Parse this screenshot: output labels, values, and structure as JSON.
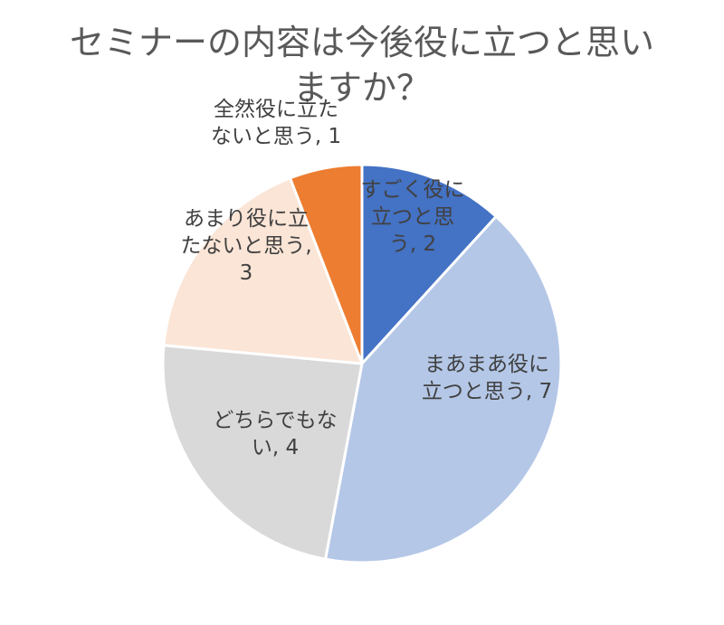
{
  "chart_data": {
    "type": "pie",
    "title_lines": [
      "セミナーの内容は今後役に立つと思い",
      "ますか？"
    ],
    "start_angle_deg": 0,
    "direction": "clockwise",
    "slices": [
      {
        "category": "すごく役に立つと思う",
        "value": 2,
        "color": "#4472C4",
        "label_lines": [
          "すごく役に",
          "立つと思",
          "う, 2"
        ]
      },
      {
        "category": "まあまあ役に立つと思う",
        "value": 7,
        "color": "#B4C7E7",
        "label_lines": [
          "まあまあ役に",
          "立つと思う, 7"
        ]
      },
      {
        "category": "どちらでもない",
        "value": 4,
        "color": "#D9D9D9",
        "label_lines": [
          "どちらでもな",
          "い, 4"
        ]
      },
      {
        "category": "あまり役に立たないと思う",
        "value": 3,
        "color": "#FBE5D6",
        "label_lines": [
          "あまり役に立",
          "たないと思う,",
          "3"
        ]
      },
      {
        "category": "全然役に立たないと思う",
        "value": 1,
        "color": "#ED7D31",
        "label_lines": [
          "全然役に立た",
          "ないと思う, 1"
        ]
      }
    ]
  }
}
